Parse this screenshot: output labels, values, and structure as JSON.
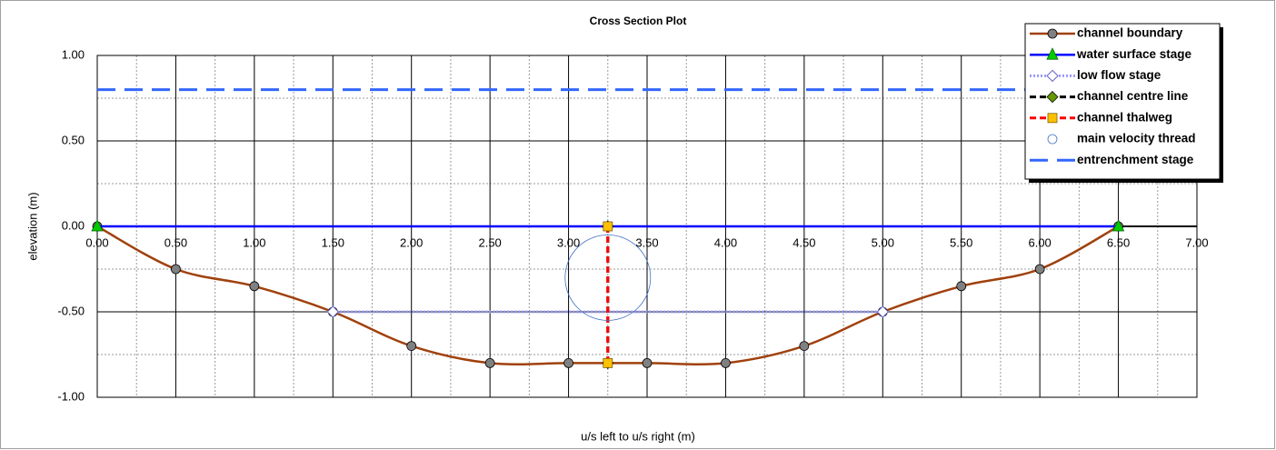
{
  "chart_data": {
    "type": "line",
    "title": "Cross Section Plot",
    "x_label": "u/s left to u/s right (m)",
    "y_label": "elevation (m)",
    "xlim": [
      0,
      7
    ],
    "ylim": [
      -1,
      1
    ],
    "xticks": [
      {
        "value": 0,
        "label": "0.00"
      },
      {
        "value": 0.5,
        "label": "0.50"
      },
      {
        "value": 1,
        "label": "1.00"
      },
      {
        "value": 1.5,
        "label": "1.50"
      },
      {
        "value": 2,
        "label": "2.00"
      },
      {
        "value": 2.5,
        "label": "2.50"
      },
      {
        "value": 3,
        "label": "3.00"
      },
      {
        "value": 3.5,
        "label": "3.50"
      },
      {
        "value": 4,
        "label": "4.00"
      },
      {
        "value": 4.5,
        "label": "4.50"
      },
      {
        "value": 5,
        "label": "5.00"
      },
      {
        "value": 5.5,
        "label": "5.50"
      },
      {
        "value": 6,
        "label": "6.00"
      },
      {
        "value": 6.5,
        "label": "6.50"
      },
      {
        "value": 7,
        "label": "7.00"
      }
    ],
    "yticks": [
      {
        "value": 1,
        "label": "1.00"
      },
      {
        "value": 0.5,
        "label": "0.50"
      },
      {
        "value": 0,
        "label": "0.00"
      },
      {
        "value": -0.5,
        "label": "-0.50"
      },
      {
        "value": -1,
        "label": "-1.00"
      }
    ],
    "grid": true,
    "legend": "top-right",
    "series": [
      {
        "name": "channel boundary",
        "color": "#a0410d",
        "marker": "circle",
        "smooth": true,
        "x": [
          0,
          0.5,
          1,
          1.5,
          2,
          2.5,
          3,
          3.5,
          4,
          4.5,
          5,
          5.5,
          6,
          6.5
        ],
        "values": [
          0,
          -0.25,
          -0.35,
          -0.5,
          -0.7,
          -0.8,
          -0.8,
          -0.8,
          -0.8,
          -0.7,
          -0.5,
          -0.35,
          -0.25,
          0
        ]
      },
      {
        "name": "water surface stage",
        "color": "#0000ff",
        "marker": "triangle",
        "x": [
          0,
          6.5
        ],
        "values": [
          0,
          0
        ]
      },
      {
        "name": "low flow stage",
        "color": "#9999ff",
        "marker": "diamond-white",
        "dash": "dotted",
        "x": [
          1.5,
          5
        ],
        "values": [
          -0.5,
          -0.5
        ]
      },
      {
        "name": "channel centre line",
        "color": "#000000",
        "marker": "diamond-green",
        "dash": "dashed",
        "x": [
          3.25,
          3.25
        ],
        "values": [
          0,
          -0.8
        ]
      },
      {
        "name": "channel thalweg",
        "color": "#ff0000",
        "marker": "square",
        "dash": "dashed",
        "x": [
          3.25,
          3.25
        ],
        "values": [
          0,
          -0.8
        ]
      },
      {
        "name": "main velocity thread",
        "color": "#4472c4",
        "marker": "big-circle",
        "line": false,
        "x": [
          3.25
        ],
        "values": [
          -0.3
        ]
      },
      {
        "name": "entrenchment stage",
        "color": "#3366ff",
        "marker": "none",
        "dash": "long",
        "x": [
          0,
          6.5
        ],
        "values": [
          0.8,
          0.8
        ]
      }
    ]
  }
}
